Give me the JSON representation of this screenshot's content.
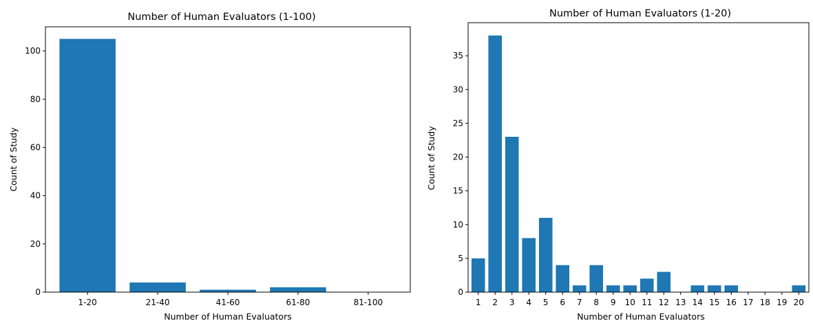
{
  "chart_data": [
    {
      "type": "bar",
      "title": "Number of Human Evaluators (1-100)",
      "xlabel": "Number of Human Evaluators",
      "ylabel": "Count of Study",
      "categories": [
        "1-20",
        "21-40",
        "41-60",
        "61-80",
        "81-100"
      ],
      "values": [
        105,
        4,
        1,
        2,
        0
      ],
      "ylim": [
        0,
        110
      ],
      "yticks": [
        0,
        20,
        40,
        60,
        80,
        100
      ],
      "color": "#1f77b4",
      "grid": false
    },
    {
      "type": "bar",
      "title": "Number of Human Evaluators (1-20)",
      "xlabel": "Number of Human Evaluators",
      "ylabel": "Count of Study",
      "categories": [
        "1",
        "2",
        "3",
        "4",
        "5",
        "6",
        "7",
        "8",
        "9",
        "10",
        "11",
        "12",
        "13",
        "14",
        "15",
        "16",
        "17",
        "18",
        "19",
        "20"
      ],
      "values": [
        5,
        38,
        23,
        8,
        11,
        4,
        1,
        4,
        1,
        1,
        2,
        3,
        0,
        1,
        1,
        1,
        0,
        0,
        0,
        1
      ],
      "ylim": [
        0,
        39.9
      ],
      "yticks": [
        0,
        5,
        10,
        15,
        20,
        25,
        30,
        35
      ],
      "color": "#1f77b4",
      "grid": false
    }
  ]
}
